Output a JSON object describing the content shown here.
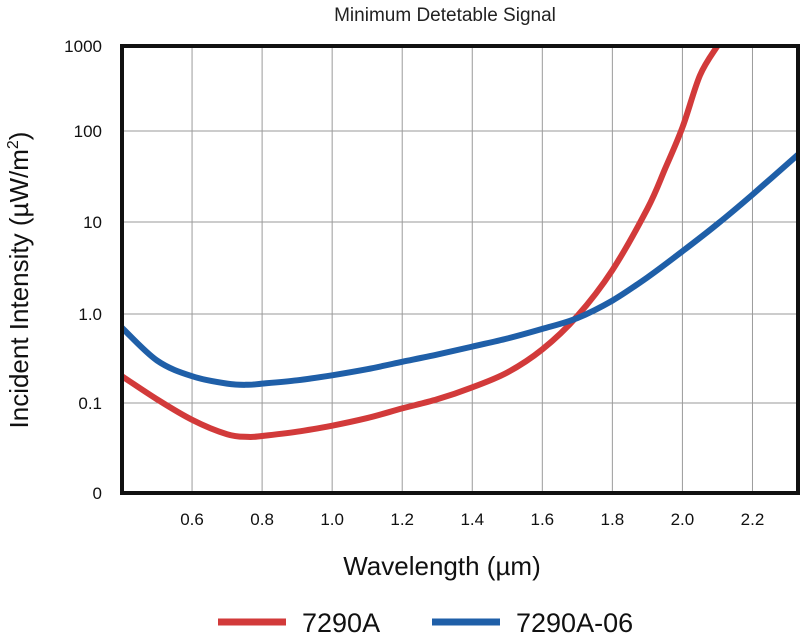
{
  "chart_data": {
    "type": "line",
    "title": "Minimum Detetable Signal",
    "xlabel": "Wavelength (µm)",
    "ylabel": "Incident Intensity (µW/m",
    "ylabel_superscript": "2",
    "ylabel_suffix": ")",
    "xlim": [
      0.4,
      2.33
    ],
    "x_ticks": [
      0.6,
      0.8,
      1.0,
      1.2,
      1.4,
      1.6,
      1.8,
      2.0,
      2.2
    ],
    "x_tick_labels": [
      "0.6",
      "0.8",
      "1.0",
      "1.2",
      "1.4",
      "1.6",
      "1.8",
      "2.0",
      "2.2"
    ],
    "y_scale": "log",
    "y_tick_labels": [
      "0",
      "0.1",
      "1.0",
      "10",
      "100",
      "1000"
    ],
    "y_tick_values": [
      0.01,
      0.1,
      1,
      10,
      100,
      1000
    ],
    "grid": true,
    "legend_position": "bottom",
    "series": [
      {
        "name": "7290A",
        "color": "#d23a3a",
        "x": [
          0.4,
          0.5,
          0.6,
          0.7,
          0.76,
          0.8,
          0.9,
          1.0,
          1.1,
          1.2,
          1.3,
          1.4,
          1.5,
          1.6,
          1.7,
          1.8,
          1.9,
          1.95,
          2.0,
          2.05,
          2.1
        ],
        "y": [
          0.2,
          0.11,
          0.065,
          0.045,
          0.042,
          0.043,
          0.048,
          0.056,
          0.068,
          0.087,
          0.11,
          0.15,
          0.22,
          0.4,
          0.95,
          3.0,
          14,
          38,
          110,
          450,
          1500
        ]
      },
      {
        "name": "7290A-06",
        "color": "#1f5fa8",
        "x": [
          0.4,
          0.5,
          0.6,
          0.7,
          0.76,
          0.8,
          0.9,
          1.0,
          1.1,
          1.2,
          1.3,
          1.4,
          1.5,
          1.6,
          1.7,
          1.8,
          1.9,
          2.0,
          2.1,
          2.2,
          2.33
        ],
        "y": [
          0.7,
          0.3,
          0.2,
          0.165,
          0.16,
          0.165,
          0.18,
          0.205,
          0.24,
          0.29,
          0.35,
          0.43,
          0.53,
          0.68,
          0.9,
          1.4,
          2.5,
          4.8,
          9.5,
          20,
          55
        ]
      }
    ]
  }
}
